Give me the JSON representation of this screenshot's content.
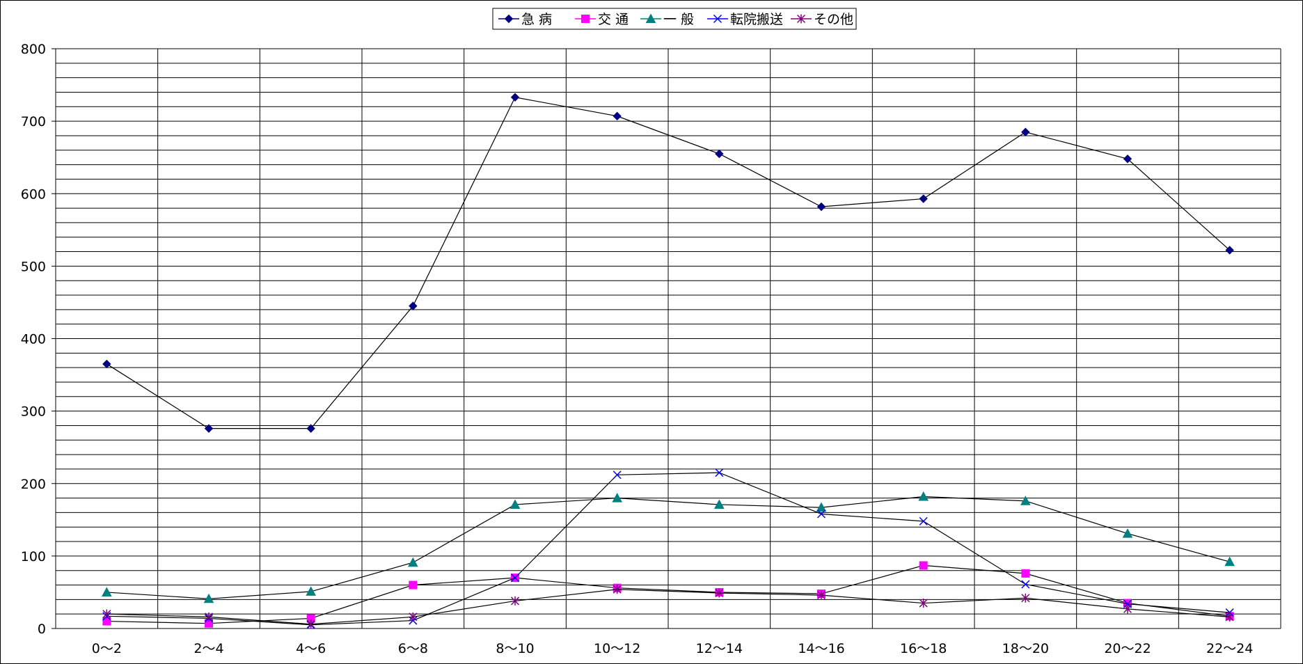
{
  "chart_data": {
    "type": "line",
    "title": "",
    "xlabel": "",
    "ylabel": "",
    "categories": [
      "0～2",
      "2～4",
      "4～6",
      "6～8",
      "8～10",
      "10～12",
      "12～14",
      "14～16",
      "16～18",
      "18～20",
      "20～22",
      "22～24"
    ],
    "ylim": [
      0,
      800
    ],
    "yticks": [
      0,
      100,
      200,
      300,
      400,
      500,
      600,
      700,
      800
    ],
    "minor_grid_step": 20,
    "grid": true,
    "legend_position": "top-center",
    "series": [
      {
        "name": "急 病",
        "color": "#000080",
        "marker": "diamond",
        "values": [
          365,
          276,
          276,
          445,
          733,
          707,
          655,
          582,
          593,
          685,
          648,
          522
        ]
      },
      {
        "name": "交 通",
        "color": "#FF00FF",
        "marker": "square",
        "values": [
          10,
          7,
          14,
          60,
          70,
          56,
          50,
          48,
          87,
          76,
          35,
          17
        ]
      },
      {
        "name": "一 般",
        "color": "#008080",
        "marker": "triangle",
        "values": [
          50,
          41,
          51,
          91,
          171,
          180,
          171,
          167,
          182,
          176,
          131,
          92
        ]
      },
      {
        "name": "転院搬送",
        "color": "#0000FF",
        "marker": "x",
        "values": [
          17,
          14,
          5,
          11,
          70,
          212,
          215,
          158,
          148,
          61,
          34,
          22
        ]
      },
      {
        "name": "その他",
        "color": "#800080",
        "marker": "star",
        "values": [
          20,
          16,
          6,
          16,
          38,
          54,
          49,
          46,
          35,
          42,
          27,
          16
        ]
      }
    ]
  }
}
